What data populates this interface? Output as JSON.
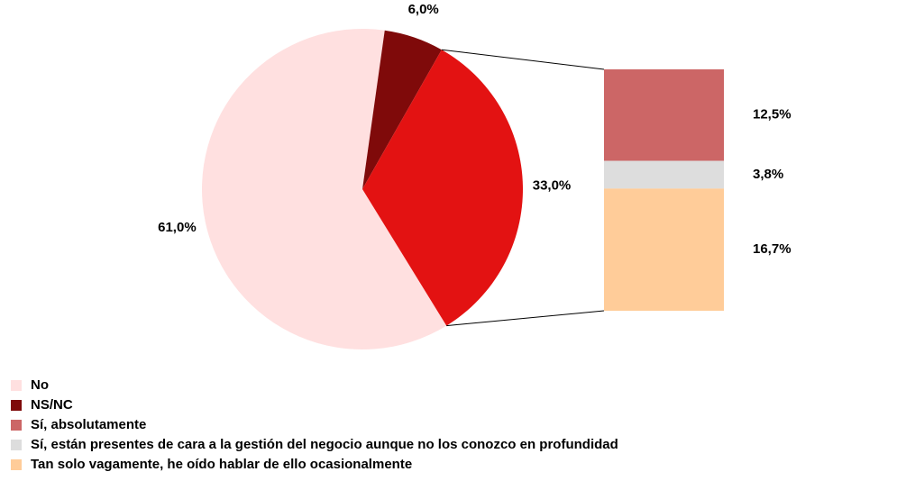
{
  "chart_data": {
    "type": "pie",
    "pie": {
      "categories": [
        "No",
        "NS/NC",
        null
      ],
      "values": [
        61.0,
        6.0,
        33.0
      ],
      "value_labels": [
        "61,0%",
        "6,0%",
        "33,0%"
      ],
      "colors": [
        "#FFE0E0",
        "#7F0A0A",
        "#E31212"
      ]
    },
    "bar": {
      "categories": [
        "Sí, absolutamente",
        "Sí, están presentes de cara a la gestión del negocio aunque no los conozco en profundidad",
        "Tan solo vagamente, he oído hablar de ello ocasionalmente"
      ],
      "values": [
        12.5,
        3.8,
        16.7
      ],
      "value_labels": [
        "12,5%",
        "3,8%",
        "16,7%"
      ],
      "colors": [
        "#CC6666",
        "#DDDDDD",
        "#FFCC99"
      ]
    },
    "legend": "bottom-left"
  }
}
